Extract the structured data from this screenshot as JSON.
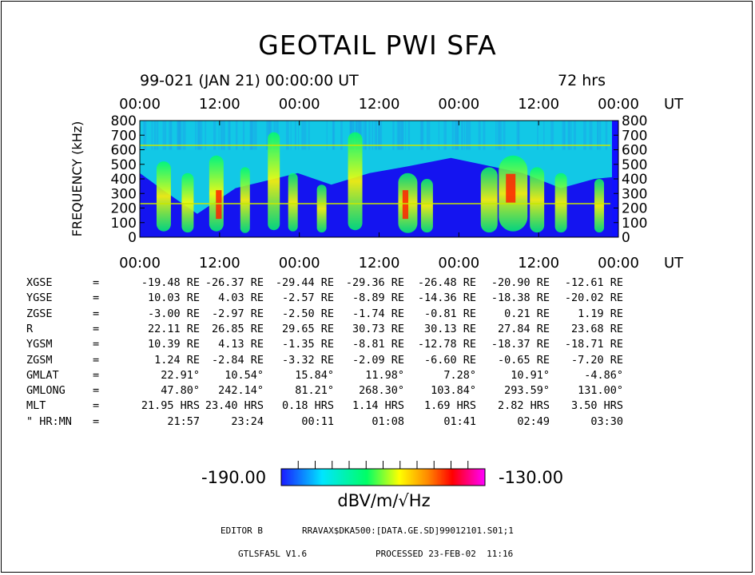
{
  "title": "GEOTAIL PWI SFA",
  "header": {
    "date": "99-021 (JAN 21) 00:00:00 UT",
    "duration": "72 hrs"
  },
  "chart_data": {
    "type": "heatmap",
    "xlabel": "",
    "ylabel": "FREQUENCY (kHz)",
    "x_ticks": [
      "00:00",
      "12:00",
      "00:00",
      "12:00",
      "00:00",
      "12:00",
      "00:00"
    ],
    "x_unit": "UT",
    "y_ticks": [
      800,
      700,
      600,
      500,
      400,
      300,
      200,
      100,
      0
    ],
    "ylim": [
      0,
      800
    ],
    "x_range_hours": [
      0,
      72
    ],
    "colorbar": {
      "min": "-190.00",
      "max": "-130.00",
      "unit": "dBV/m/√Hz",
      "colors": [
        "#1a1aff",
        "#00e5ff",
        "#00ff66",
        "#ffff00",
        "#ff8800",
        "#ff0000",
        "#ff00ff"
      ]
    }
  },
  "orbit_table": {
    "rows": [
      {
        "label": "XGSE",
        "eq": "=",
        "vals": [
          "-19.48 RE",
          "-26.37 RE",
          "-29.44 RE",
          "-29.36 RE",
          "-26.48 RE",
          "-20.90 RE",
          "-12.61 RE"
        ]
      },
      {
        "label": "YGSE",
        "eq": "=",
        "vals": [
          "10.03 RE",
          "4.03 RE",
          "-2.57 RE",
          "-8.89 RE",
          "-14.36 RE",
          "-18.38 RE",
          "-20.02 RE"
        ]
      },
      {
        "label": "ZGSE",
        "eq": "=",
        "vals": [
          "-3.00 RE",
          "-2.97 RE",
          "-2.50 RE",
          "-1.74 RE",
          "-0.81 RE",
          "0.21 RE",
          "1.19 RE"
        ]
      },
      {
        "label": "R",
        "eq": "=",
        "vals": [
          "22.11 RE",
          "26.85 RE",
          "29.65 RE",
          "30.73 RE",
          "30.13 RE",
          "27.84 RE",
          "23.68 RE"
        ]
      },
      {
        "label": "YGSM",
        "eq": "=",
        "vals": [
          "10.39 RE",
          "4.13 RE",
          "-1.35 RE",
          "-8.81 RE",
          "-12.78 RE",
          "-18.37 RE",
          "-18.71 RE"
        ]
      },
      {
        "label": "ZGSM",
        "eq": "=",
        "vals": [
          "1.24 RE",
          "-2.84 RE",
          "-3.32 RE",
          "-2.09 RE",
          "-6.60 RE",
          "-0.65 RE",
          "-7.20 RE"
        ]
      },
      {
        "label": "GMLAT",
        "eq": "=",
        "vals": [
          "22.91°",
          "10.54°",
          "15.84°",
          "11.98°",
          "7.28°",
          "10.91°",
          "-4.86°"
        ]
      },
      {
        "label": "GMLONG",
        "eq": "=",
        "vals": [
          "47.80°",
          "242.14°",
          "81.21°",
          "268.30°",
          "103.84°",
          "293.59°",
          "131.00°"
        ]
      },
      {
        "label": "MLT",
        "eq": "=",
        "vals": [
          "21.95 HRS",
          "23.40 HRS",
          "0.18 HRS",
          "1.14 HRS",
          "1.69 HRS",
          "2.82 HRS",
          "3.50 HRS"
        ]
      },
      {
        "label": "\" HR:MN",
        "eq": "=",
        "vals": [
          "21:57",
          "23:24",
          "00:11",
          "01:08",
          "01:41",
          "02:49",
          "03:30"
        ]
      }
    ]
  },
  "footer": {
    "editor": "EDITOR B",
    "path": "RRAVAX$DKA500:[DATA.GE.SD]99012101.S01;1",
    "program": "GTLSFA5L V1.6",
    "processed": "PROCESSED 23-FEB-02  11:16"
  }
}
